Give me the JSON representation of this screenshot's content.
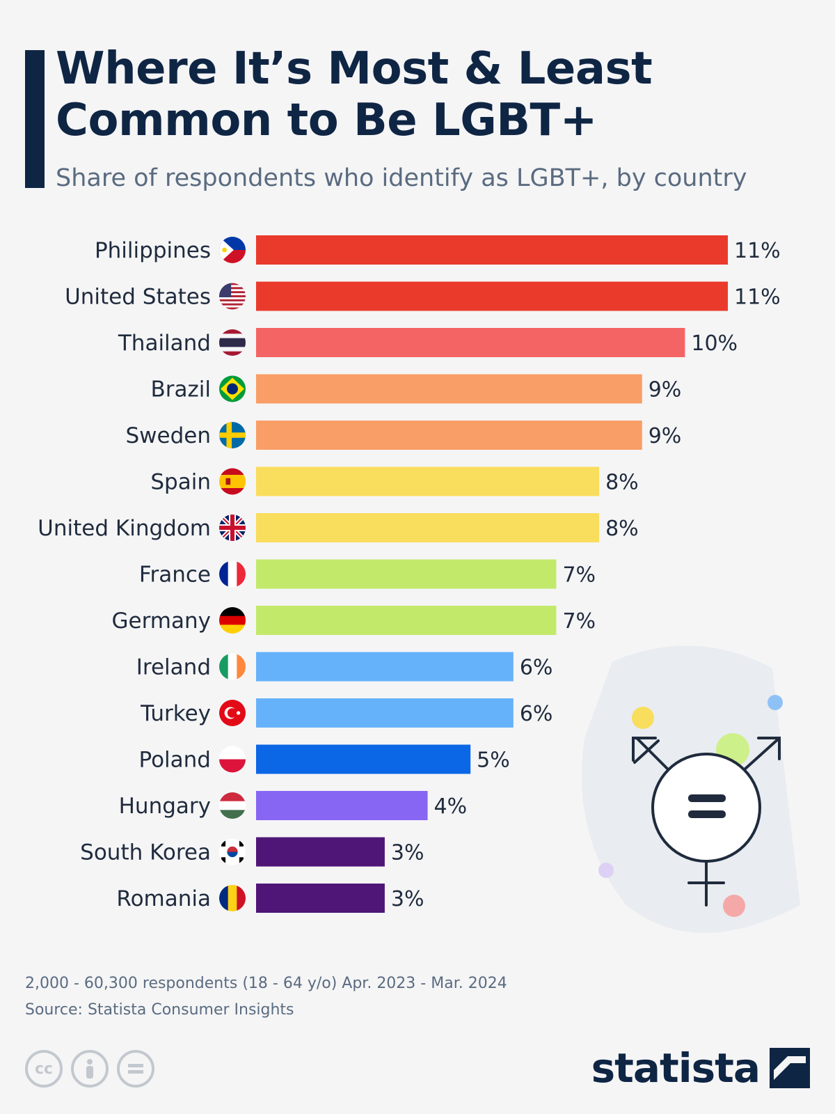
{
  "header": {
    "title_line1": "Where It’s Most & Least",
    "title_line2": "Common to Be LGBT+",
    "subtitle": "Share of respondents who identify as LGBT+, by country"
  },
  "chart_data": {
    "type": "bar",
    "orientation": "horizontal",
    "title": "Where It’s Most & Least Common to Be LGBT+",
    "subtitle": "Share of respondents who identify as LGBT+, by country",
    "xlabel": "",
    "ylabel": "",
    "xlim": [
      0,
      11
    ],
    "unit": "%",
    "categories": [
      "Philippines",
      "United States",
      "Thailand",
      "Brazil",
      "Sweden",
      "Spain",
      "United Kingdom",
      "France",
      "Germany",
      "Ireland",
      "Turkey",
      "Poland",
      "Hungary",
      "South Korea",
      "Romania"
    ],
    "values": [
      11,
      11,
      10,
      9,
      9,
      8,
      8,
      7,
      7,
      6,
      6,
      5,
      4,
      3,
      3
    ],
    "labels": [
      "11%",
      "11%",
      "10%",
      "9%",
      "9%",
      "8%",
      "8%",
      "7%",
      "7%",
      "6%",
      "6%",
      "5%",
      "4%",
      "3%",
      "3%"
    ],
    "colors": [
      "#ea3a2c",
      "#ea3a2c",
      "#f56464",
      "#f99e66",
      "#f99e66",
      "#f9dd5c",
      "#f9dd5c",
      "#c3e96a",
      "#c3e96a",
      "#66b2fa",
      "#66b2fa",
      "#0b67e6",
      "#8766f3",
      "#4f1677",
      "#4f1677"
    ],
    "flags": [
      "philippines-flag-icon",
      "united-states-flag-icon",
      "thailand-flag-icon",
      "brazil-flag-icon",
      "sweden-flag-icon",
      "spain-flag-icon",
      "united-kingdom-flag-icon",
      "france-flag-icon",
      "germany-flag-icon",
      "ireland-flag-icon",
      "turkey-flag-icon",
      "poland-flag-icon",
      "hungary-flag-icon",
      "south-korea-flag-icon",
      "romania-flag-icon"
    ],
    "grid": false,
    "legend": "none"
  },
  "footer": {
    "note": "2,000 - 60,300 respondents (18 - 64 y/o) Apr. 2023 - Mar. 2024",
    "source": "Source: Statista Consumer Insights",
    "license_icons": [
      "cc-icon",
      "attribution-icon",
      "no-derivatives-icon"
    ],
    "brand": "statista"
  },
  "colors": {
    "title": "#0f2544",
    "subtitle": "#5a6b80",
    "background": "#f5f5f6"
  }
}
